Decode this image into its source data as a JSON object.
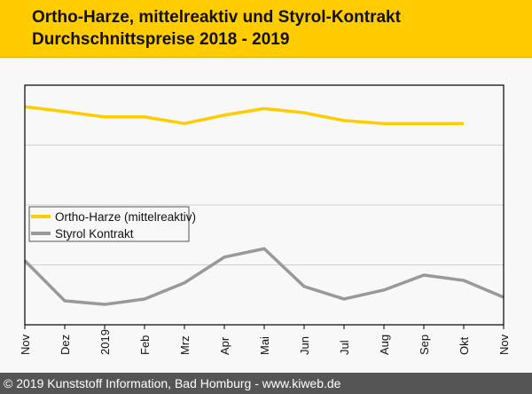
{
  "header": {
    "title_line1": "Ortho-Harze, mittelreaktiv und Styrol-Kontrakt",
    "title_line2": "Durchschnittspreise 2018 - 2019"
  },
  "footer": {
    "text": "© 2019 Kunststoff Information, Bad Homburg - www.kiweb.de"
  },
  "chart_data": {
    "type": "line",
    "title": "Ortho-Harze, mittelreaktiv und Styrol-Kontrakt Durchschnittspreise 2018 - 2019",
    "xlabel": "",
    "ylabel": "",
    "categories": [
      "Nov",
      "Dez",
      "2019",
      "Feb",
      "Mrz",
      "Apr",
      "Mai",
      "Jun",
      "Jul",
      "Aug",
      "Sep",
      "Okt",
      "Nov"
    ],
    "ylim": [
      0,
      4
    ],
    "y_ticks_labeled": false,
    "grid": true,
    "legend": "middle-left",
    "series": [
      {
        "name": "Ortho-Harze (mittelreaktiv)",
        "color": "#ffcc00",
        "values": [
          3.64,
          3.56,
          3.47,
          3.47,
          3.36,
          3.5,
          3.61,
          3.54,
          3.41,
          3.36,
          3.36,
          3.36,
          null
        ]
      },
      {
        "name": "Styrol Kontrakt",
        "color": "#999999",
        "values": [
          1.07,
          0.4,
          0.34,
          0.43,
          0.7,
          1.13,
          1.27,
          0.64,
          0.43,
          0.58,
          0.83,
          0.74,
          0.46
        ]
      }
    ]
  }
}
